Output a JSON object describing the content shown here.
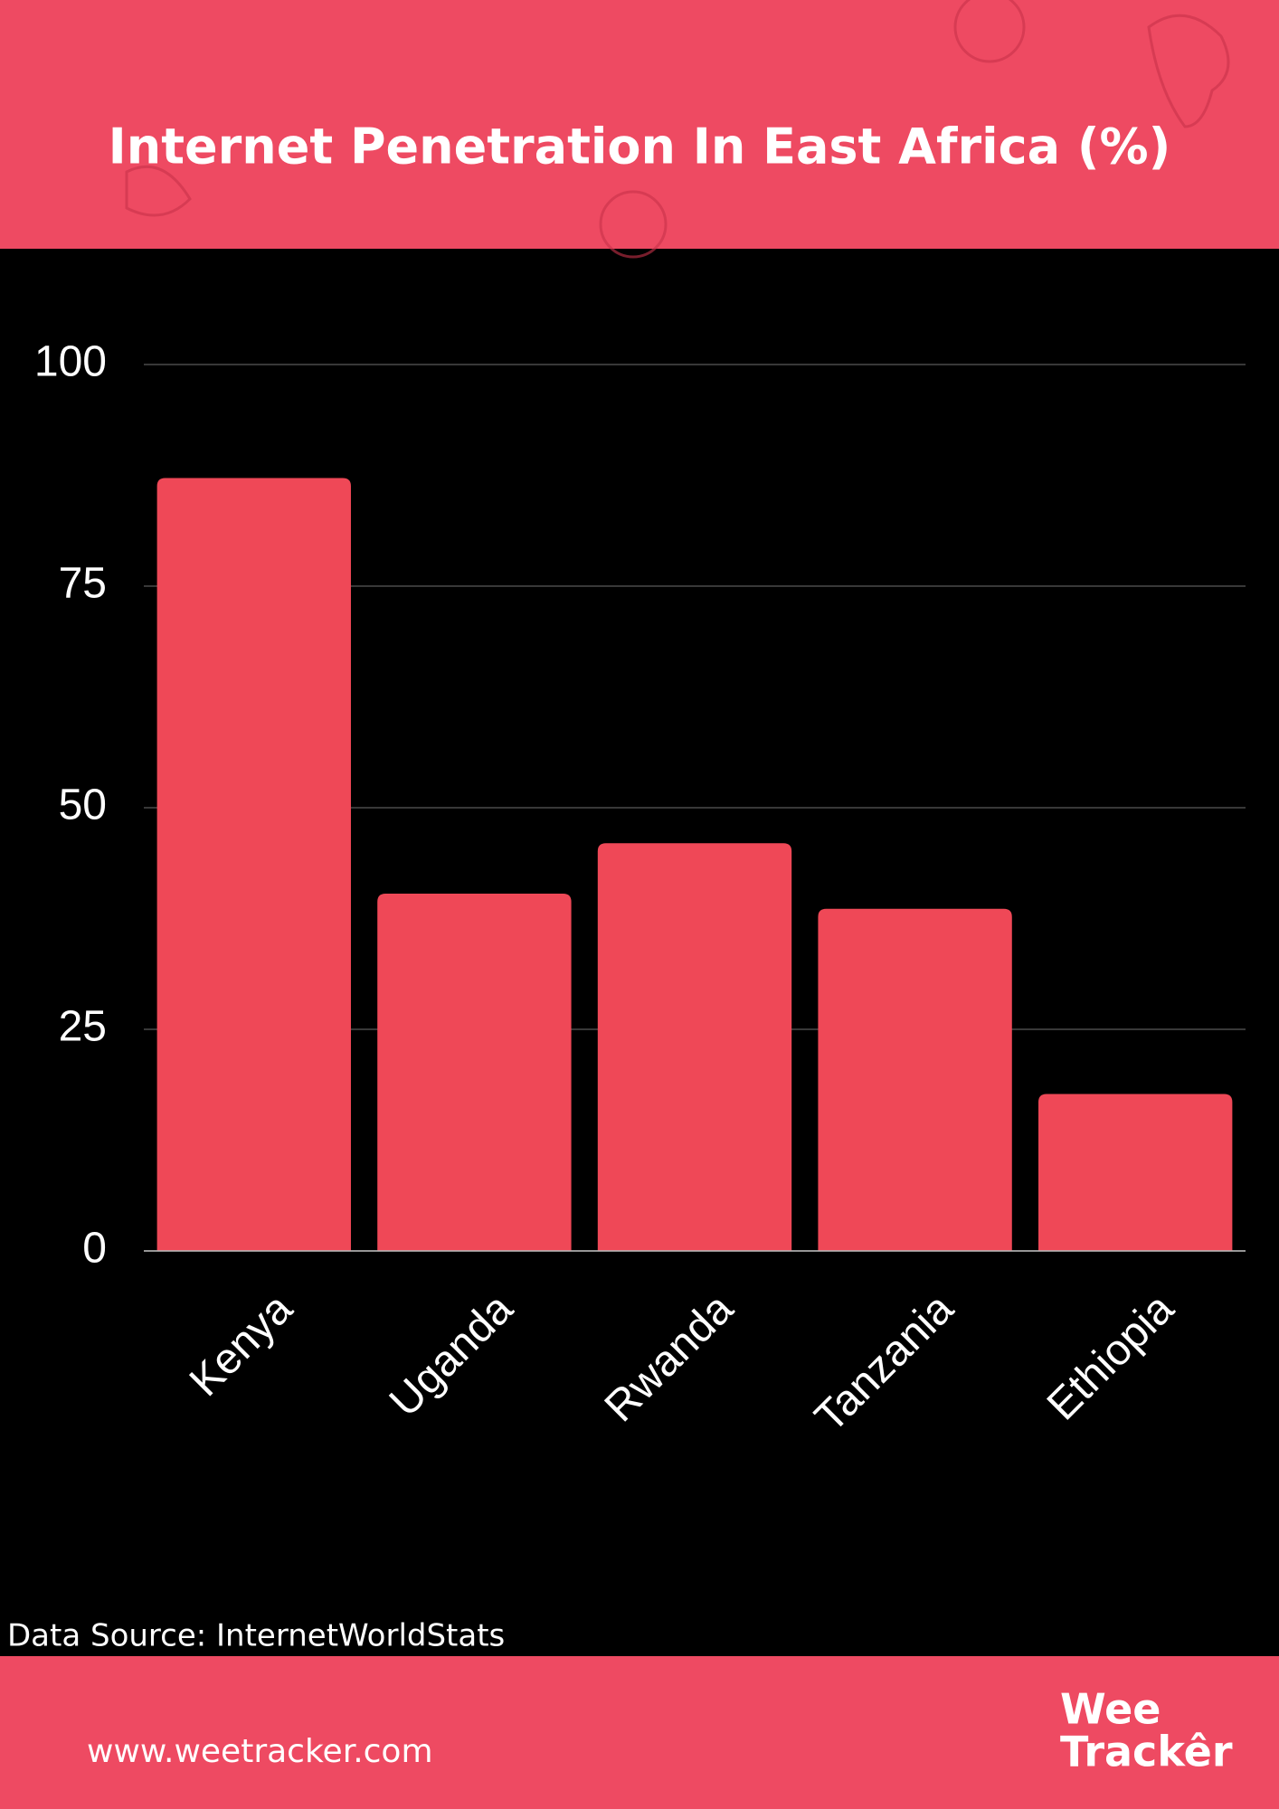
{
  "chart_data": {
    "type": "bar",
    "title": "Internet Penetration In East Africa (%)",
    "categories": [
      "Kenya",
      "Uganda",
      "Rwanda",
      "Tanzania",
      "Ethiopia"
    ],
    "values": [
      87.2,
      40.3,
      46,
      38.6,
      17.7
    ],
    "color": "#ef4857",
    "ylim": [
      0,
      100
    ],
    "yticks": [
      0,
      25,
      50,
      75,
      100
    ],
    "grid": true,
    "source": "Data Source: InternetWorldStats"
  },
  "footer": {
    "website": "www.weetracker.com",
    "logo": [
      "Wee",
      "Trackêr"
    ]
  }
}
